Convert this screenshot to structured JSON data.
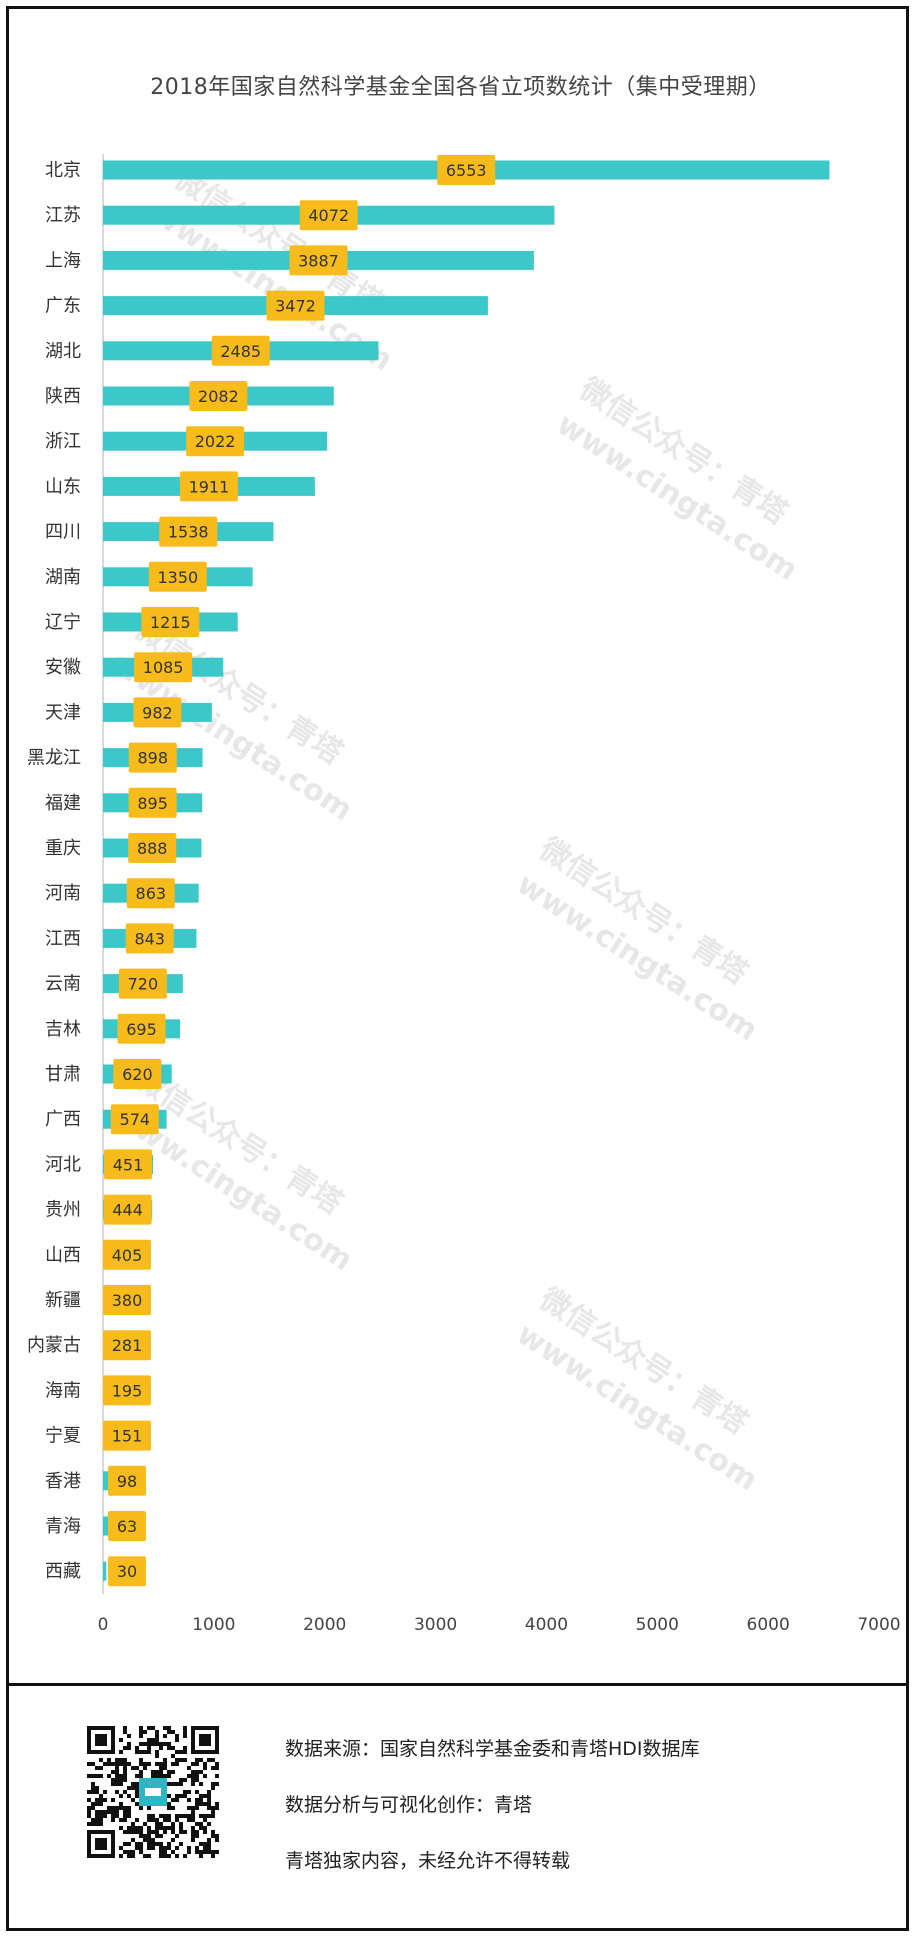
{
  "chart_data": {
    "type": "bar",
    "orientation": "horizontal",
    "title": "2018年国家自然科学基金全国各省立项数统计（集中受理期）",
    "categories": [
      "北京",
      "江苏",
      "上海",
      "广东",
      "湖北",
      "陕西",
      "浙江",
      "山东",
      "四川",
      "湖南",
      "辽宁",
      "安徽",
      "天津",
      "黑龙江",
      "福建",
      "重庆",
      "河南",
      "江西",
      "云南",
      "吉林",
      "甘肃",
      "广西",
      "河北",
      "贵州",
      "山西",
      "新疆",
      "内蒙古",
      "海南",
      "宁夏",
      "香港",
      "青海",
      "西藏"
    ],
    "values": [
      6553,
      4072,
      3887,
      3472,
      2485,
      2082,
      2022,
      1911,
      1538,
      1350,
      1215,
      1085,
      982,
      898,
      895,
      888,
      863,
      843,
      720,
      695,
      620,
      574,
      451,
      444,
      405,
      380,
      281,
      195,
      151,
      98,
      63,
      30
    ],
    "xlim": [
      0,
      7000
    ],
    "xticks": [
      0,
      1000,
      2000,
      3000,
      4000,
      5000,
      6000,
      7000
    ],
    "grid": false,
    "colors": {
      "bar": "#3cc8c8",
      "label_box": "#f7bb1c"
    }
  },
  "watermark": {
    "line1": "微信公众号：青塔",
    "line2": "www.cingta.com"
  },
  "footer": {
    "source": "数据来源：国家自然科学基金委和青塔HDI数据库",
    "analysis": "数据分析与可视化创作：青塔",
    "copyright": "青塔独家内容，未经允许不得转载"
  }
}
